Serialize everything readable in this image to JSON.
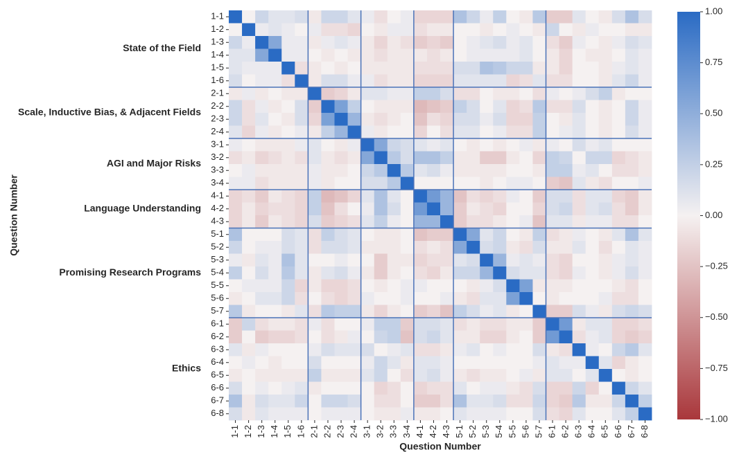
{
  "chart_data": {
    "type": "heatmap",
    "xlabel": "Question Number",
    "ylabel": "Question Number",
    "categories": [
      "1-1",
      "1-2",
      "1-3",
      "1-4",
      "1-5",
      "1-6",
      "2-1",
      "2-2",
      "2-3",
      "2-4",
      "3-1",
      "3-2",
      "3-3",
      "3-4",
      "4-1",
      "4-2",
      "4-3",
      "5-1",
      "5-2",
      "5-3",
      "5-4",
      "5-5",
      "5-6",
      "5-7",
      "6-1",
      "6-2",
      "6-3",
      "6-4",
      "6-5",
      "6-6",
      "6-7",
      "6-8"
    ],
    "groups": [
      {
        "label": "State of the Field",
        "count": 6
      },
      {
        "label": "Scale, Inductive Bias, & Adjacent Fields",
        "count": 4
      },
      {
        "label": "AGI and Major Risks",
        "count": 4
      },
      {
        "label": "Language Understanding",
        "count": 3
      },
      {
        "label": "Promising Research Programs",
        "count": 7
      },
      {
        "label": "Ethics",
        "count": 8
      }
    ],
    "separator_color": "#4a72b8",
    "cmap": [
      "#a9373b",
      "#f5f1f1",
      "#2a6bc4"
    ],
    "vlim": [
      -1,
      1
    ],
    "colorbar_ticks": [
      {
        "value": 1,
        "label": "1.00"
      },
      {
        "value": 0.75,
        "label": "0.75"
      },
      {
        "value": 0.5,
        "label": "0.50"
      },
      {
        "value": 0.25,
        "label": "0.25"
      },
      {
        "value": 0,
        "label": "0.00"
      },
      {
        "value": -0.25,
        "label": "−0.25"
      },
      {
        "value": -0.5,
        "label": "−0.50"
      },
      {
        "value": -0.75,
        "label": "−0.75"
      },
      {
        "value": -1,
        "label": "−1.00"
      }
    ],
    "values": [
      [
        1,
        0,
        0.2,
        0.1,
        0.1,
        0.15,
        -0.05,
        0.2,
        0.2,
        0.1,
        0.05,
        -0.1,
        0,
        0.05,
        -0.15,
        -0.15,
        -0.15,
        0.35,
        0.2,
        0.05,
        0.25,
        0,
        -0.05,
        0.3,
        -0.2,
        -0.2,
        0.1,
        0,
        -0.05,
        0.15,
        0.35,
        0.15
      ],
      [
        0,
        1,
        0.05,
        0.1,
        0.05,
        0,
        0.05,
        -0.1,
        -0.1,
        -0.15,
        0,
        -0.05,
        0.05,
        0.05,
        -0.1,
        -0.05,
        -0.05,
        0,
        0,
        -0.05,
        0,
        0.05,
        0,
        -0.05,
        0.2,
        0,
        -0.05,
        0.05,
        0,
        0,
        -0.05,
        -0.05
      ],
      [
        0.2,
        0.05,
        1,
        0.55,
        0.05,
        0.05,
        -0.05,
        0.05,
        0.1,
        0.05,
        -0.05,
        -0.15,
        -0.05,
        -0.1,
        -0.2,
        -0.15,
        -0.2,
        0,
        0.05,
        0.1,
        0.15,
        0.05,
        0.1,
        0,
        -0.1,
        -0.2,
        0.05,
        0,
        -0.05,
        0.05,
        0.15,
        0.1
      ],
      [
        0.1,
        0.1,
        0.55,
        1,
        0.05,
        0.05,
        0,
        -0.05,
        0,
        -0.05,
        -0.05,
        -0.1,
        -0.05,
        -0.05,
        -0.05,
        -0.1,
        -0.05,
        0,
        0.05,
        0.05,
        0.05,
        0.05,
        0.1,
        0,
        -0.05,
        -0.15,
        0,
        -0.05,
        -0.05,
        0,
        0.1,
        0.05
      ],
      [
        0.1,
        0.05,
        0.05,
        0.05,
        1,
        -0.1,
        -0.05,
        0,
        -0.05,
        0,
        -0.05,
        -0.05,
        -0.05,
        -0.05,
        -0.1,
        -0.1,
        -0.1,
        0.15,
        0.15,
        0.35,
        0.3,
        0.2,
        0.2,
        -0.05,
        -0.05,
        -0.15,
        0,
        0,
        -0.05,
        0.05,
        0.1,
        0.05
      ],
      [
        0.15,
        0,
        0.05,
        0.05,
        -0.1,
        1,
        -0.05,
        0.15,
        0.15,
        0.05,
        0.05,
        -0.1,
        -0.05,
        -0.05,
        -0.15,
        -0.15,
        -0.15,
        0.1,
        0.1,
        0.1,
        0.1,
        -0.15,
        -0.1,
        0.1,
        -0.1,
        -0.1,
        0,
        0,
        -0.05,
        0.1,
        0.2,
        0.05
      ],
      [
        -0.05,
        0.05,
        -0.05,
        0,
        -0.05,
        -0.05,
        1,
        -0.2,
        -0.15,
        -0.05,
        0.1,
        0.1,
        0.05,
        0.05,
        0.25,
        0.25,
        0.15,
        -0.1,
        -0.1,
        0,
        -0.05,
        -0.05,
        0,
        -0.1,
        0.05,
        0,
        0.05,
        0.15,
        0.25,
        -0.05,
        0,
        0
      ],
      [
        0.2,
        -0.1,
        0.05,
        -0.05,
        0,
        0.15,
        -0.2,
        1,
        0.6,
        0.25,
        0,
        -0.05,
        -0.05,
        -0.05,
        -0.3,
        -0.25,
        -0.2,
        0.25,
        0.15,
        0,
        0.1,
        -0.15,
        -0.1,
        0.3,
        -0.1,
        -0.1,
        0.15,
        0,
        -0.05,
        0,
        0.2,
        0.05
      ],
      [
        0.2,
        -0.1,
        0.1,
        0,
        -0.05,
        0.15,
        -0.15,
        0.6,
        1,
        0.45,
        -0.05,
        -0.1,
        -0.05,
        0,
        -0.25,
        -0.1,
        -0.15,
        0.15,
        0.15,
        0.05,
        0.15,
        -0.15,
        -0.15,
        0.25,
        0,
        -0.05,
        0.1,
        0,
        -0.05,
        0,
        0.2,
        0.05
      ],
      [
        0.1,
        -0.15,
        0.05,
        -0.05,
        0,
        0.05,
        -0.05,
        0.25,
        0.45,
        1,
        0.05,
        -0.05,
        0,
        0,
        -0.15,
        0,
        -0.1,
        0.1,
        0.1,
        0,
        0.05,
        -0.1,
        -0.1,
        0.25,
        0,
        0.05,
        0.1,
        0,
        -0.05,
        0,
        0.15,
        0.05
      ],
      [
        0.05,
        0,
        -0.05,
        -0.05,
        -0.05,
        0.05,
        0.1,
        0,
        -0.05,
        0.05,
        1,
        0.55,
        0.2,
        0.15,
        0.1,
        0.05,
        0.1,
        0,
        -0.05,
        0,
        -0.05,
        0,
        0.05,
        -0.05,
        0.05,
        0,
        0.15,
        0.05,
        0.1,
        0,
        0,
        0
      ],
      [
        -0.1,
        -0.05,
        -0.15,
        -0.1,
        -0.05,
        -0.1,
        0.1,
        -0.05,
        -0.1,
        -0.05,
        0.55,
        1,
        0.3,
        0.15,
        0.35,
        0.35,
        0.25,
        -0.05,
        -0.05,
        -0.2,
        -0.2,
        -0.05,
        0,
        -0.15,
        0.25,
        0.2,
        0,
        0.2,
        0.2,
        -0.15,
        -0.1,
        -0.05
      ],
      [
        0,
        0.05,
        -0.05,
        -0.05,
        -0.05,
        -0.05,
        0.05,
        -0.05,
        -0.05,
        0,
        0.2,
        0.3,
        1,
        0.3,
        0.1,
        0.15,
        0.05,
        -0.05,
        -0.05,
        -0.05,
        -0.05,
        0,
        0,
        -0.05,
        0.25,
        0.25,
        0.05,
        0.1,
        0,
        -0.1,
        -0.1,
        -0.05
      ],
      [
        0.05,
        0.05,
        -0.1,
        -0.05,
        -0.05,
        -0.05,
        0.05,
        -0.05,
        0,
        0,
        0.15,
        0.15,
        0.3,
        1,
        0,
        0,
        0,
        0,
        0,
        -0.05,
        0,
        0.05,
        0.05,
        0,
        -0.2,
        -0.25,
        0.1,
        -0.05,
        -0.1,
        0,
        0,
        0.05
      ],
      [
        -0.15,
        -0.1,
        -0.2,
        -0.05,
        -0.1,
        -0.15,
        0.25,
        -0.3,
        -0.25,
        -0.15,
        0.1,
        0.35,
        0.1,
        0,
        1,
        0.65,
        0.45,
        -0.25,
        -0.1,
        -0.15,
        -0.1,
        0.05,
        0,
        -0.2,
        0.15,
        0.15,
        -0.1,
        0.1,
        0.1,
        -0.15,
        -0.2,
        -0.05
      ],
      [
        -0.15,
        -0.05,
        -0.15,
        -0.1,
        -0.1,
        -0.15,
        0.25,
        -0.25,
        -0.1,
        0,
        0.05,
        0.35,
        0.15,
        0,
        0.65,
        1,
        0.45,
        -0.2,
        -0.05,
        -0.1,
        -0.15,
        0,
        0,
        -0.15,
        0.15,
        0.2,
        -0.1,
        0.1,
        0.15,
        -0.1,
        -0.2,
        -0.05
      ],
      [
        -0.15,
        -0.05,
        -0.2,
        -0.05,
        -0.1,
        -0.15,
        0.15,
        -0.2,
        -0.15,
        -0.1,
        0.1,
        0.25,
        0.05,
        0,
        0.45,
        0.45,
        1,
        -0.2,
        -0.1,
        -0.1,
        -0.05,
        0,
        0.05,
        -0.25,
        0.1,
        0.1,
        -0.05,
        0.05,
        0.05,
        -0.1,
        -0.1,
        0
      ],
      [
        0.35,
        0,
        0,
        0,
        0.15,
        0.1,
        -0.1,
        0.25,
        0.15,
        0.1,
        0,
        -0.05,
        -0.05,
        0,
        -0.25,
        -0.2,
        -0.2,
        1,
        0.55,
        0.1,
        0.2,
        0,
        -0.05,
        0.25,
        -0.1,
        -0.05,
        0.05,
        0,
        -0.05,
        0.1,
        0.35,
        0.1
      ],
      [
        0.2,
        0,
        0.05,
        0.05,
        0.15,
        0.1,
        -0.1,
        0.15,
        0.15,
        0.1,
        -0.05,
        -0.05,
        -0.05,
        0,
        -0.1,
        -0.05,
        -0.1,
        0.55,
        1,
        0.15,
        0.2,
        -0.05,
        -0.1,
        0.15,
        -0.05,
        -0.05,
        0.1,
        0,
        -0.1,
        0,
        0.1,
        0.05
      ],
      [
        0.05,
        -0.05,
        0.1,
        0.05,
        0.35,
        0.1,
        0,
        0,
        0.05,
        0,
        0,
        -0.2,
        -0.05,
        -0.05,
        -0.15,
        -0.1,
        -0.1,
        0.1,
        0.15,
        1,
        0.45,
        0.05,
        0.1,
        0.05,
        -0.1,
        -0.15,
        0,
        0,
        -0.05,
        0.05,
        0.1,
        0.05
      ],
      [
        0.25,
        0,
        0.15,
        0.05,
        0.3,
        0.1,
        -0.05,
        0.1,
        0.15,
        0.05,
        -0.05,
        -0.2,
        -0.05,
        0,
        -0.1,
        -0.15,
        -0.05,
        0.2,
        0.2,
        0.45,
        1,
        0.15,
        0.1,
        0.1,
        -0.1,
        -0.15,
        0.05,
        0,
        -0.05,
        0.05,
        0.15,
        0.05
      ],
      [
        0,
        0.05,
        0.05,
        0.05,
        0.2,
        -0.15,
        -0.05,
        -0.15,
        -0.15,
        -0.1,
        0,
        -0.05,
        0,
        0.05,
        0.05,
        0,
        0,
        0,
        -0.05,
        0.05,
        0.15,
        1,
        0.6,
        -0.05,
        -0.05,
        -0.05,
        0,
        0,
        0,
        -0.05,
        -0.1,
        0
      ],
      [
        -0.05,
        0,
        0.1,
        0.1,
        0.2,
        -0.1,
        0,
        -0.1,
        -0.15,
        -0.1,
        0.05,
        0,
        0,
        0.05,
        0,
        0,
        0.05,
        -0.05,
        -0.1,
        0.1,
        0.1,
        0.6,
        1,
        0,
        -0.05,
        0,
        0,
        0,
        0.05,
        -0.1,
        -0.1,
        0
      ],
      [
        0.3,
        -0.05,
        0,
        0,
        -0.05,
        0.1,
        -0.1,
        0.3,
        0.25,
        0.25,
        -0.05,
        -0.15,
        -0.05,
        0,
        -0.2,
        -0.15,
        -0.25,
        0.25,
        0.15,
        0.05,
        0.1,
        -0.05,
        0,
        1,
        -0.2,
        -0.2,
        0.15,
        0.05,
        -0.05,
        0.15,
        0.2,
        0.15
      ],
      [
        -0.2,
        0.2,
        -0.1,
        -0.05,
        -0.05,
        -0.1,
        0.05,
        -0.1,
        0,
        0,
        0.05,
        0.25,
        0.25,
        -0.2,
        0.15,
        0.15,
        0.1,
        -0.1,
        -0.05,
        -0.1,
        -0.1,
        -0.05,
        -0.05,
        -0.2,
        1,
        0.65,
        -0.05,
        0.1,
        0.1,
        -0.15,
        -0.15,
        -0.1
      ],
      [
        -0.2,
        0,
        -0.2,
        -0.15,
        -0.15,
        -0.1,
        0,
        -0.1,
        -0.05,
        0.05,
        0,
        0.2,
        0.25,
        -0.25,
        0.15,
        0.2,
        0.1,
        -0.05,
        -0.05,
        -0.15,
        -0.15,
        -0.05,
        0,
        -0.2,
        0.65,
        1,
        -0.1,
        0.05,
        0.1,
        -0.15,
        -0.2,
        -0.15
      ],
      [
        0.1,
        -0.05,
        0.05,
        0,
        0,
        0,
        0.05,
        0.15,
        0.1,
        0.1,
        0.15,
        0,
        0.05,
        0.1,
        -0.1,
        -0.1,
        -0.05,
        0.05,
        0.1,
        0,
        0.05,
        0,
        0,
        0.15,
        -0.05,
        -0.1,
        1,
        0.05,
        0,
        0.2,
        0.3,
        0.1
      ],
      [
        0,
        0.05,
        0,
        -0.05,
        0,
        0,
        0.15,
        0,
        0,
        0,
        0.05,
        0.2,
        0.1,
        -0.05,
        0.1,
        0.1,
        0.05,
        0,
        0,
        0,
        0,
        0,
        0,
        0.05,
        0.1,
        0.05,
        0.05,
        1,
        0.1,
        -0.15,
        -0.05,
        0
      ],
      [
        -0.05,
        0,
        -0.05,
        -0.05,
        -0.05,
        -0.05,
        0.25,
        -0.05,
        -0.05,
        -0.05,
        0.1,
        0.2,
        0,
        -0.1,
        0.1,
        0.15,
        0.05,
        -0.05,
        -0.1,
        -0.05,
        -0.05,
        0,
        0.05,
        -0.05,
        0.1,
        0.1,
        0,
        0.1,
        1,
        0,
        -0.05,
        0
      ],
      [
        0.15,
        0,
        0.05,
        0,
        0.05,
        0.1,
        -0.05,
        0,
        0,
        0,
        0,
        -0.15,
        -0.1,
        0,
        -0.15,
        -0.1,
        -0.1,
        0.1,
        0,
        0.05,
        0.05,
        -0.05,
        -0.1,
        0.15,
        -0.15,
        -0.15,
        0.2,
        -0.15,
        0,
        1,
        0.2,
        0.1
      ],
      [
        0.35,
        -0.05,
        0.15,
        0.1,
        0.1,
        0.2,
        0,
        0.2,
        0.2,
        0.15,
        0,
        -0.1,
        -0.1,
        0,
        -0.2,
        -0.2,
        -0.1,
        0.35,
        0.1,
        0.1,
        0.15,
        -0.1,
        -0.1,
        0.2,
        -0.15,
        -0.2,
        0.3,
        -0.05,
        -0.05,
        0.2,
        1,
        0.25
      ],
      [
        0.15,
        -0.05,
        0.1,
        0.05,
        0.05,
        0.05,
        0,
        0.05,
        0.05,
        0.05,
        0,
        -0.05,
        -0.05,
        0.05,
        -0.05,
        -0.05,
        0,
        0.1,
        0.05,
        0.05,
        0.05,
        0,
        0,
        0.15,
        -0.1,
        -0.15,
        0.1,
        0,
        0,
        0.1,
        0.25,
        1
      ]
    ]
  }
}
